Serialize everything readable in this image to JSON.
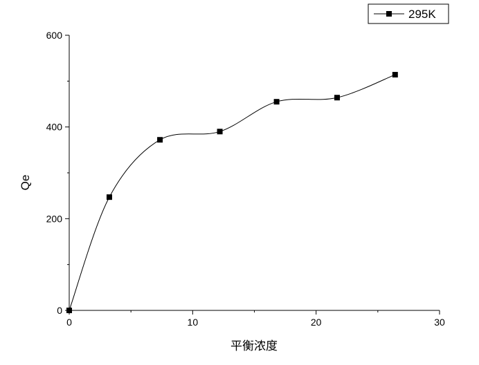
{
  "chart_data": {
    "type": "line",
    "x_label": "平衡浓度",
    "y_label": "Qe",
    "series": [
      {
        "name": "295K",
        "color": "#000000",
        "x": [
          0,
          3.25,
          7.35,
          12.2,
          16.8,
          21.7,
          26.4
        ],
        "values": [
          0,
          247,
          372,
          390,
          455,
          464,
          514
        ]
      }
    ],
    "xlim": [
      0,
      30
    ],
    "xticks": [
      0,
      10,
      20,
      30
    ],
    "xminorticks": [
      5,
      15,
      25
    ],
    "ylim": [
      0,
      600
    ],
    "yticks": [
      0,
      200,
      400,
      600
    ],
    "yminorticks": [
      100,
      300,
      500
    ],
    "smooth": true,
    "marker": "square",
    "legend": "top-right"
  }
}
